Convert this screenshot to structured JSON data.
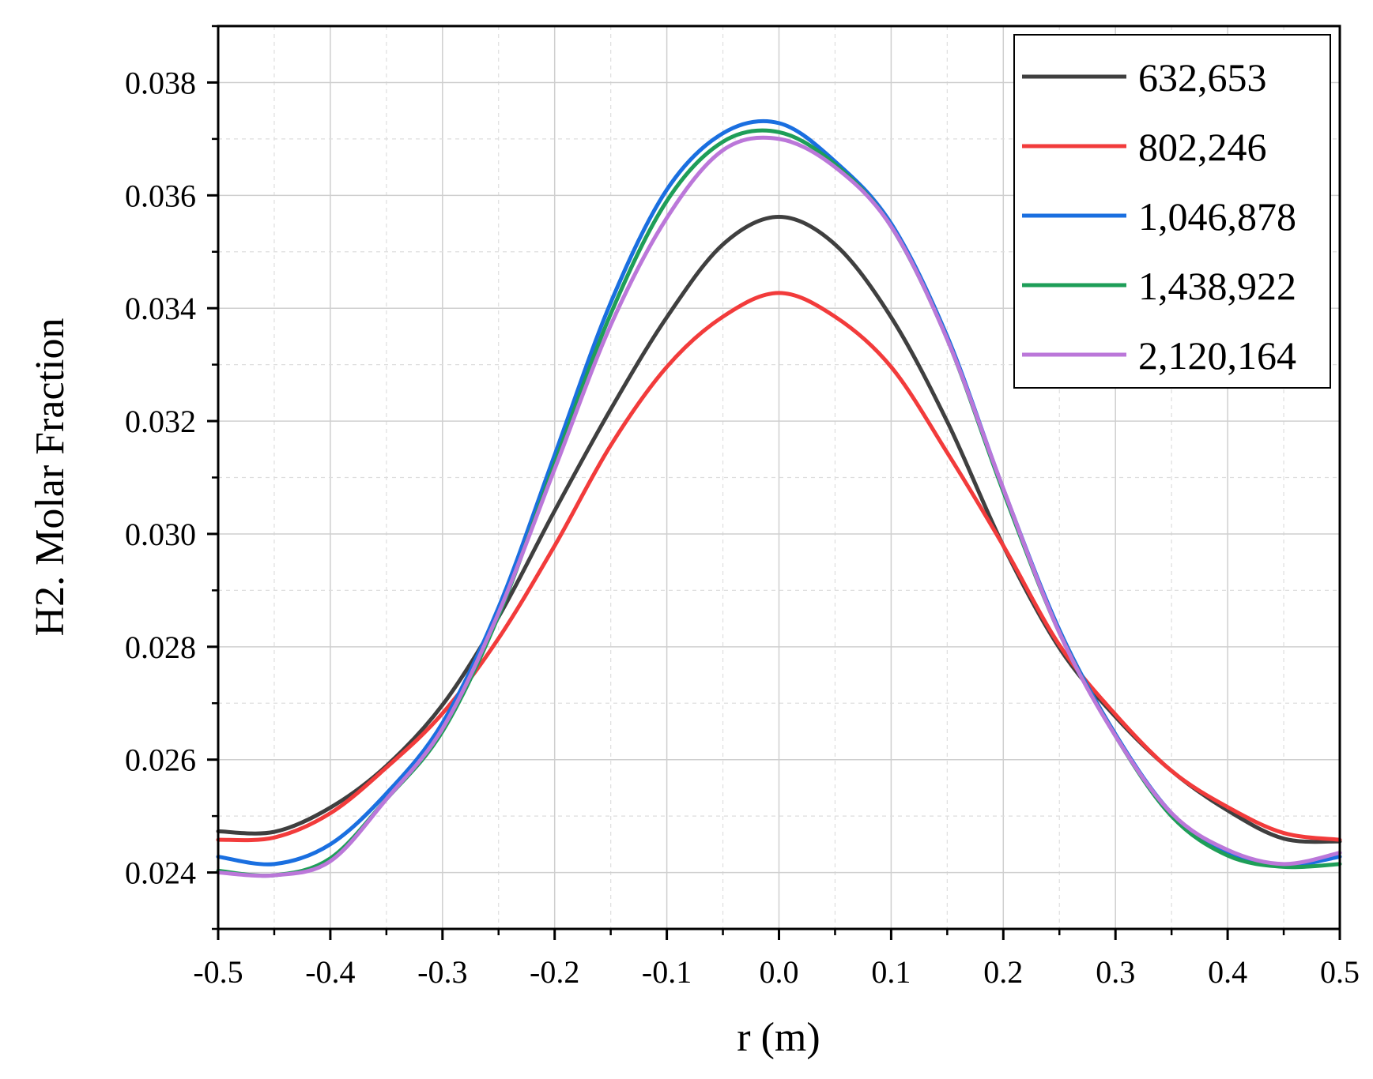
{
  "chart_data": {
    "type": "line",
    "title": "",
    "xlabel": "r (m)",
    "ylabel": "H2. Molar Fraction",
    "xlim": [
      -0.5,
      0.5
    ],
    "ylim": [
      0.023,
      0.039
    ],
    "grid": true,
    "legend_position": "top-right",
    "x_ticks": [
      -0.5,
      -0.4,
      -0.3,
      -0.2,
      -0.1,
      0.0,
      0.1,
      0.2,
      0.3,
      0.4,
      0.5
    ],
    "x_tick_labels": [
      "-0.5",
      "-0.4",
      "-0.3",
      "-0.2",
      "-0.1",
      "0.0",
      "0.1",
      "0.2",
      "0.3",
      "0.4",
      "0.5"
    ],
    "y_ticks": [
      0.024,
      0.026,
      0.028,
      0.03,
      0.032,
      0.034,
      0.036,
      0.038
    ],
    "y_tick_labels": [
      "0.024",
      "0.026",
      "0.028",
      "0.030",
      "0.032",
      "0.034",
      "0.036",
      "0.038"
    ],
    "x": [
      -0.5,
      -0.45,
      -0.4,
      -0.35,
      -0.3,
      -0.25,
      -0.2,
      -0.15,
      -0.1,
      -0.05,
      0.0,
      0.05,
      0.1,
      0.15,
      0.2,
      0.25,
      0.3,
      0.35,
      0.4,
      0.45,
      0.5
    ],
    "series": [
      {
        "name": "632,653",
        "color": "#3f3f3f",
        "values": [
          0.02473,
          0.02472,
          0.02515,
          0.02589,
          0.02697,
          0.02853,
          0.03041,
          0.03221,
          0.03384,
          0.03513,
          0.03562,
          0.03513,
          0.03384,
          0.03199,
          0.02979,
          0.02798,
          0.02676,
          0.0258,
          0.0251,
          0.0246,
          0.02455
        ]
      },
      {
        "name": "802,246",
        "color": "#f23b3b",
        "values": [
          0.02458,
          0.02462,
          0.02505,
          0.02586,
          0.02682,
          0.02815,
          0.02979,
          0.03157,
          0.03296,
          0.03385,
          0.03427,
          0.03385,
          0.03296,
          0.03144,
          0.02979,
          0.02803,
          0.0268,
          0.0258,
          0.02516,
          0.0247,
          0.02458
        ]
      },
      {
        "name": "1,046,878",
        "color": "#1a6fe0",
        "values": [
          0.02428,
          0.02415,
          0.0245,
          0.0254,
          0.02665,
          0.0287,
          0.0314,
          0.0341,
          0.0361,
          0.0371,
          0.03728,
          0.0366,
          0.0355,
          0.0335,
          0.0308,
          0.0283,
          0.02645,
          0.02505,
          0.02435,
          0.02412,
          0.02428
        ]
      },
      {
        "name": "1,438,922",
        "color": "#1e9e58",
        "values": [
          0.02403,
          0.02395,
          0.02425,
          0.0253,
          0.0265,
          0.02855,
          0.03125,
          0.0339,
          0.0359,
          0.03695,
          0.03712,
          0.03655,
          0.03545,
          0.03345,
          0.03075,
          0.02825,
          0.02642,
          0.025,
          0.0243,
          0.0241,
          0.02415
        ]
      },
      {
        "name": "2,120,164",
        "color": "#bb77d9",
        "values": [
          0.024,
          0.02395,
          0.0242,
          0.0253,
          0.02655,
          0.0286,
          0.03115,
          0.0337,
          0.0356,
          0.0368,
          0.037,
          0.0365,
          0.03545,
          0.03345,
          0.0308,
          0.02825,
          0.02642,
          0.02505,
          0.0244,
          0.02415,
          0.02435
        ]
      }
    ]
  }
}
